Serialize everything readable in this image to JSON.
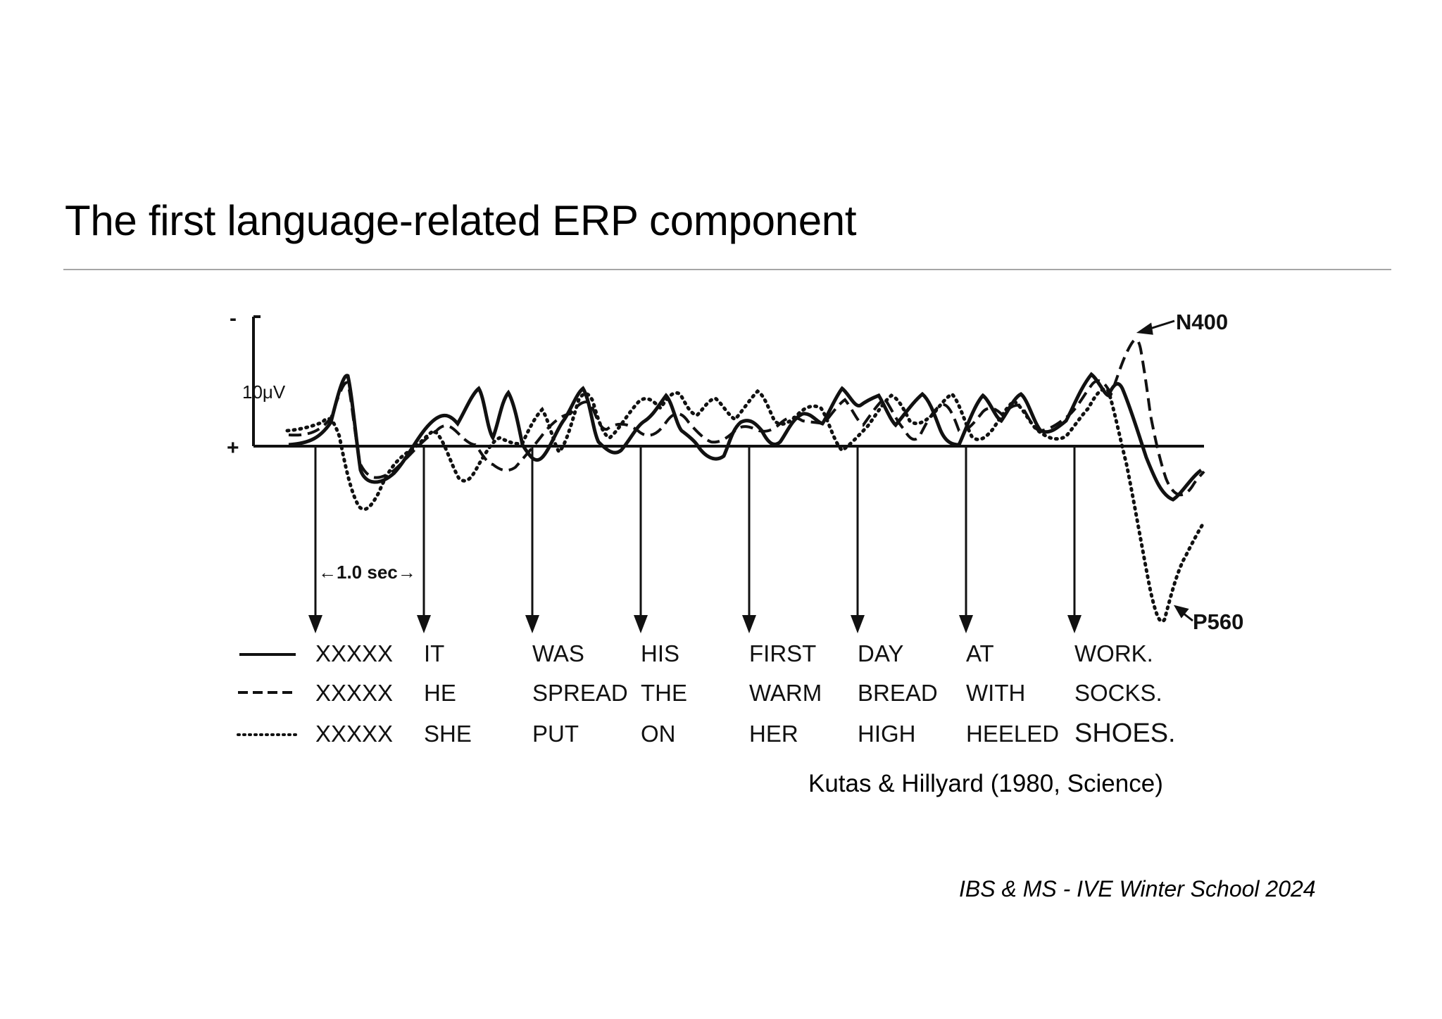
{
  "slide": {
    "title": "The first language-related ERP component",
    "citation": "Kutas & Hillyard (1980, Science)",
    "footer": "IBS & MS - IVE Winter School 2024"
  },
  "figure": {
    "y_axis": {
      "top_sign": "-",
      "bottom_sign": "+",
      "scale_label": "10μV"
    },
    "time_scale_label": "←1.0 sec→",
    "annotations": {
      "n400": "N400",
      "p560": "P560"
    },
    "sentences": [
      {
        "line_style": "solid",
        "words": [
          "XXXXX",
          "IT",
          "WAS",
          "HIS",
          "FIRST",
          "DAY",
          "AT",
          "WORK."
        ]
      },
      {
        "line_style": "dashed",
        "words": [
          "XXXXX",
          "HE",
          "SPREAD",
          "THE",
          "WARM",
          "BREAD",
          "WITH",
          "SOCKS."
        ]
      },
      {
        "line_style": "dotted",
        "words": [
          "XXXXX",
          "SHE",
          "PUT",
          "ON",
          "HER",
          "HIGH",
          "HEELED",
          "SHOES."
        ]
      }
    ]
  }
}
